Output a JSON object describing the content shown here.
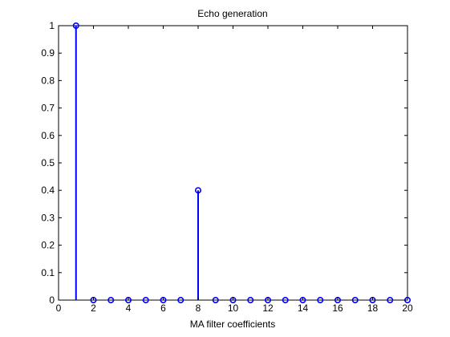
{
  "chart_data": {
    "type": "stem",
    "title": "Echo generation",
    "xlabel": "MA filter coefficients",
    "ylabel": "",
    "xlim": [
      0,
      20
    ],
    "ylim": [
      0,
      1
    ],
    "xticks": [
      0,
      2,
      4,
      6,
      8,
      10,
      12,
      14,
      16,
      18,
      20
    ],
    "yticks": [
      0,
      0.1,
      0.2,
      0.3,
      0.4,
      0.5,
      0.6,
      0.7,
      0.8,
      0.9,
      1
    ],
    "x": [
      1,
      2,
      3,
      4,
      5,
      6,
      7,
      8,
      9,
      10,
      11,
      12,
      13,
      14,
      15,
      16,
      17,
      18,
      19,
      20
    ],
    "values": [
      1,
      0,
      0,
      0,
      0,
      0,
      0,
      0.4,
      0,
      0,
      0,
      0,
      0,
      0,
      0,
      0,
      0,
      0,
      0,
      0
    ],
    "grid": false,
    "colors": {
      "stem": "#0000ff",
      "axes": "#000000"
    }
  }
}
